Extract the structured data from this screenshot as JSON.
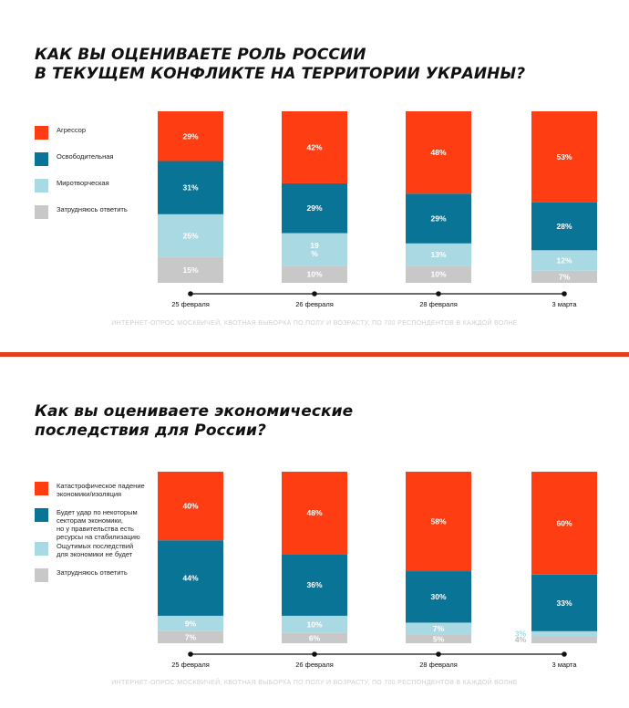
{
  "colors": {
    "aggressor": "#fe3d13",
    "liberating": "#0a7497",
    "peacekeeping": "#a9d9e3",
    "undecided": "#c8c8c8",
    "divider": "#e63e1c"
  },
  "charts": [
    {
      "title": "КАК ВЫ ОЦЕНИВАЕТЕ РОЛЬ РОССИИ\nВ ТЕКУЩЕМ КОНФЛИКТЕ НА ТЕРРИТОРИИ УКРАИНЫ?",
      "legend": [
        {
          "label": "Агрессор",
          "color": "#fe3d13"
        },
        {
          "label": "Освободительная",
          "color": "#0a7497"
        },
        {
          "label": "Миротворческая",
          "color": "#a9d9e3"
        },
        {
          "label": "Затрудняюсь ответить",
          "color": "#c8c8c8"
        }
      ],
      "note": "ИНТЕРНЕТ-ОПРОС МОСКВИЧЕЙ, КВОТНАЯ ВЫБОРКА ПО ПОЛУ И ВОЗРАСТУ, ПО 700 РЕСПОНДЕНТОВ В КАЖДОЙ ВОЛНЕ"
    },
    {
      "title": "Как вы оцениваете экономические\nпоследствия для России?",
      "legend": [
        {
          "label": "Катастрофическое падение\nэкономики/изоляция",
          "color": "#fe3d13"
        },
        {
          "label": "Будет удар по некоторым\nсекторам экономики,\nно у правительства есть\nресурсы на стабилизацию",
          "color": "#0a7497"
        },
        {
          "label": "Ощутимых последствий\nдля экономики не будет",
          "color": "#a9d9e3"
        },
        {
          "label": "Затрудняюсь ответить",
          "color": "#c8c8c8"
        }
      ],
      "note": "ИНТЕРНЕТ-ОПРОС МОСКВИЧЕЙ, КВОТНАЯ ВЫБОРКА ПО ПОЛУ И ВОЗРАСТУ, ПО 700 РЕСПОНДЕНТОВ В КАЖДОЙ ВОЛНЕ"
    }
  ],
  "chart_data": [
    {
      "type": "bar",
      "stacked": true,
      "title": "КАК ВЫ ОЦЕНИВАЕТЕ РОЛЬ РОССИИ В ТЕКУЩЕМ КОНФЛИКТЕ НА ТЕРРИТОРИИ УКРАИНЫ?",
      "categories": [
        "25 февраля",
        "26 февраля",
        "28 февраля",
        "3 марта"
      ],
      "ylim": [
        0,
        100
      ],
      "series": [
        {
          "name": "Агрессор",
          "color": "#fe3d13",
          "values": [
            29,
            42,
            48,
            53
          ],
          "labels": [
            "29%",
            "42%",
            "48%",
            "53%"
          ]
        },
        {
          "name": "Освободительная",
          "color": "#0a7497",
          "values": [
            31,
            29,
            29,
            28
          ],
          "labels": [
            "31%",
            "29%",
            "29%",
            "28%"
          ]
        },
        {
          "name": "Миротворческая",
          "color": "#a9d9e3",
          "values": [
            25,
            19,
            13,
            12
          ],
          "labels": [
            "25%",
            "19\n%",
            "13%",
            "12%"
          ]
        },
        {
          "name": "Затрудняюсь ответить",
          "color": "#c8c8c8",
          "values": [
            15,
            10,
            10,
            7
          ],
          "labels": [
            "15%",
            "10%",
            "10%",
            "7%"
          ]
        }
      ]
    },
    {
      "type": "bar",
      "stacked": true,
      "title": "Как вы оцениваете экономические последствия для России?",
      "categories": [
        "25 февраля",
        "26 февраля",
        "28 февраля",
        "3 марта"
      ],
      "ylim": [
        0,
        100
      ],
      "series": [
        {
          "name": "Катастрофическое падение экономики/изоляция",
          "color": "#fe3d13",
          "values": [
            40,
            48,
            58,
            60
          ],
          "labels": [
            "40%",
            "48%",
            "58%",
            "60%"
          ]
        },
        {
          "name": "Будет удар по некоторым секторам экономики, но у правительства есть ресурсы на стабилизацию",
          "color": "#0a7497",
          "values": [
            44,
            36,
            30,
            33
          ],
          "labels": [
            "44%",
            "36%",
            "30%",
            "33%"
          ]
        },
        {
          "name": "Ощутимых последствий для экономики не будет",
          "color": "#a9d9e3",
          "values": [
            9,
            10,
            7,
            3
          ],
          "labels": [
            "9%",
            "10%",
            "7%",
            "3%"
          ]
        },
        {
          "name": "Затрудняюсь ответить",
          "color": "#c8c8c8",
          "values": [
            7,
            6,
            5,
            4
          ],
          "labels": [
            "7%",
            "6%",
            "5%",
            "4%"
          ]
        }
      ]
    }
  ]
}
